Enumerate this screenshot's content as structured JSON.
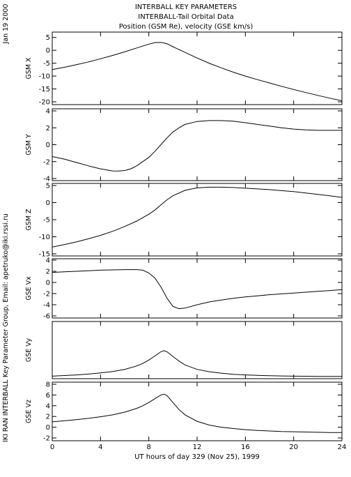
{
  "header": {
    "title_lines": [
      "INTERBALL KEY PARAMETERS",
      "INTERBALL-Tail Orbital Data",
      "Position (GSM Re), velocity (GSE km/s)"
    ],
    "date_label": "Jan 19 2000",
    "side_label": "IKI RAN INTERBALL Key Parameter Group, Email: apetruko@iki.rssi.ru"
  },
  "chart_data": {
    "type": "line",
    "x_axis": {
      "label": "UT hours of day 329 (Nov 25), 1999",
      "range": [
        0,
        24
      ],
      "ticks": [
        0,
        4,
        8,
        12,
        16,
        20,
        24
      ]
    },
    "panels": [
      {
        "ylabel": "GSM X",
        "ylim": [
          -20,
          6
        ],
        "yticks": [
          5,
          0,
          -5,
          -10,
          -15,
          -20
        ],
        "series": [
          {
            "x": [
              0,
              1,
              2,
              3,
              4,
              5,
              6,
              7,
              8,
              8.5,
              9,
              9.5,
              10,
              11,
              12,
              13,
              14,
              15,
              16,
              17,
              18,
              19,
              20,
              21,
              22,
              23,
              24
            ],
            "y": [
              -7.5,
              -6.6,
              -5.6,
              -4.5,
              -3.3,
              -2.0,
              -0.6,
              0.9,
              2.4,
              3.0,
              3.1,
              2.6,
              1.4,
              -0.8,
              -3.0,
              -5.0,
              -6.8,
              -8.5,
              -10.0,
              -11.4,
              -12.7,
              -14.0,
              -15.2,
              -16.4,
              -17.5,
              -18.6,
              -19.6
            ]
          }
        ]
      },
      {
        "ylabel": "GSM Y",
        "ylim": [
          -4,
          4
        ],
        "yticks": [
          4,
          2,
          0,
          -2,
          -4
        ],
        "series": [
          {
            "x": [
              0,
              1,
              2,
              3,
              4,
              5,
              5.5,
              6,
              6.5,
              7,
              8,
              8.5,
              9,
              9.5,
              10,
              10.5,
              11,
              12,
              13,
              14,
              15,
              16,
              17,
              18,
              19,
              20,
              21,
              22,
              23,
              24
            ],
            "y": [
              -1.4,
              -1.7,
              -2.1,
              -2.5,
              -2.85,
              -3.1,
              -3.12,
              -3.05,
              -2.85,
              -2.5,
              -1.5,
              -0.8,
              0.0,
              0.8,
              1.5,
              2.0,
              2.4,
              2.75,
              2.85,
              2.85,
              2.78,
              2.6,
              2.4,
              2.2,
              2.0,
              1.85,
              1.75,
              1.7,
              1.7,
              1.7
            ]
          }
        ]
      },
      {
        "ylabel": "GSM Z",
        "ylim": [
          -15,
          5
        ],
        "yticks": [
          5,
          0,
          -5,
          -10,
          -15
        ],
        "series": [
          {
            "x": [
              0,
              1,
              2,
              3,
              4,
              5,
              6,
              7,
              8,
              8.5,
              9,
              9.5,
              10,
              11,
              12,
              13,
              14,
              15,
              16,
              17,
              18,
              19,
              20,
              21,
              22,
              23,
              24
            ],
            "y": [
              -13.0,
              -12.3,
              -11.5,
              -10.6,
              -9.6,
              -8.4,
              -7.0,
              -5.4,
              -3.4,
              -2.2,
              -0.7,
              0.8,
              2.0,
              3.6,
              4.3,
              4.5,
              4.5,
              4.4,
              4.2,
              4.0,
              3.8,
              3.5,
              3.2,
              2.8,
              2.4,
              2.0,
              1.5
            ]
          }
        ]
      },
      {
        "ylabel": "GSE Vx",
        "ylim": [
          -6,
          4
        ],
        "yticks": [
          4,
          2,
          0,
          -2,
          -4,
          -6
        ],
        "series": [
          {
            "x": [
              0,
              1,
              2,
              3,
              4,
              5,
              6,
              7,
              7.5,
              8,
              8.5,
              9,
              9.5,
              10,
              10.5,
              11,
              12,
              13,
              14,
              15,
              16,
              17,
              18,
              19,
              20,
              21,
              22,
              23,
              24
            ],
            "y": [
              1.8,
              1.9,
              2.0,
              2.1,
              2.2,
              2.25,
              2.3,
              2.3,
              2.2,
              1.7,
              0.8,
              -0.8,
              -2.8,
              -4.3,
              -4.7,
              -4.6,
              -4.0,
              -3.5,
              -3.15,
              -2.85,
              -2.6,
              -2.4,
              -2.2,
              -2.05,
              -1.9,
              -1.75,
              -1.6,
              -1.45,
              -1.3
            ]
          }
        ]
      },
      {
        "ylabel": "GSE Vy",
        "ylim": [
          0,
          2.5
        ],
        "yticks": [],
        "series": [
          {
            "x": [
              0,
              1,
              2,
              3,
              4,
              5,
              6,
              7,
              7.5,
              8,
              8.5,
              9,
              9.25,
              9.5,
              10,
              10.5,
              11,
              12,
              13,
              14,
              15,
              16,
              17,
              18,
              19,
              20,
              21,
              22,
              23,
              24
            ],
            "y": [
              0.02,
              0.05,
              0.08,
              0.12,
              0.17,
              0.24,
              0.34,
              0.5,
              0.62,
              0.78,
              0.97,
              1.17,
              1.22,
              1.17,
              0.95,
              0.73,
              0.55,
              0.34,
              0.23,
              0.16,
              0.11,
              0.08,
              0.06,
              0.04,
              0.03,
              0.02,
              0.015,
              0.01,
              0.01,
              0.01
            ]
          }
        ]
      },
      {
        "ylabel": "GSE Vz",
        "ylim": [
          -2,
          8
        ],
        "yticks": [
          8,
          6,
          4,
          2,
          0,
          -2
        ],
        "series": [
          {
            "x": [
              0,
              1,
              2,
              3,
              4,
              5,
              6,
              7,
              7.5,
              8,
              8.5,
              9,
              9.25,
              9.5,
              10,
              10.5,
              11,
              12,
              13,
              14,
              15,
              16,
              17,
              18,
              19,
              20,
              21,
              22,
              23,
              24
            ],
            "y": [
              1.0,
              1.2,
              1.4,
              1.65,
              1.95,
              2.3,
              2.8,
              3.5,
              4.0,
              4.6,
              5.3,
              6.0,
              6.15,
              5.9,
              4.6,
              3.3,
              2.3,
              1.1,
              0.4,
              0.0,
              -0.25,
              -0.45,
              -0.6,
              -0.7,
              -0.8,
              -0.85,
              -0.9,
              -0.95,
              -1.0,
              -1.0
            ]
          }
        ]
      }
    ]
  }
}
